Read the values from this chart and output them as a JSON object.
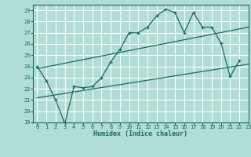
{
  "xlabel": "Humidex (Indice chaleur)",
  "xlim": [
    -0.5,
    23
  ],
  "ylim": [
    19,
    29.5
  ],
  "yticks": [
    19,
    20,
    21,
    22,
    23,
    24,
    25,
    26,
    27,
    28,
    29
  ],
  "xticks": [
    0,
    1,
    2,
    3,
    4,
    5,
    6,
    7,
    8,
    9,
    10,
    11,
    12,
    13,
    14,
    15,
    16,
    17,
    18,
    19,
    20,
    21,
    22,
    23
  ],
  "bg_color": "#b0ddd6",
  "grid_color": "#ffffff",
  "line_color": "#1a6b5a",
  "main_x": [
    0,
    1,
    2,
    3,
    4,
    5,
    6,
    7,
    8,
    9,
    10,
    11,
    12,
    13,
    14,
    15,
    16,
    17,
    18,
    19,
    20,
    21,
    22
  ],
  "main_y": [
    24.0,
    22.7,
    21.0,
    18.9,
    22.2,
    22.1,
    22.2,
    23.0,
    24.4,
    25.5,
    27.0,
    27.0,
    27.5,
    28.5,
    29.1,
    28.8,
    27.0,
    28.8,
    27.5,
    27.5,
    26.1,
    23.1,
    24.5
  ],
  "upper_line_x": [
    0,
    23
  ],
  "upper_line_y": [
    23.8,
    27.5
  ],
  "lower_line_x": [
    0,
    23
  ],
  "lower_line_y": [
    21.2,
    24.2
  ]
}
